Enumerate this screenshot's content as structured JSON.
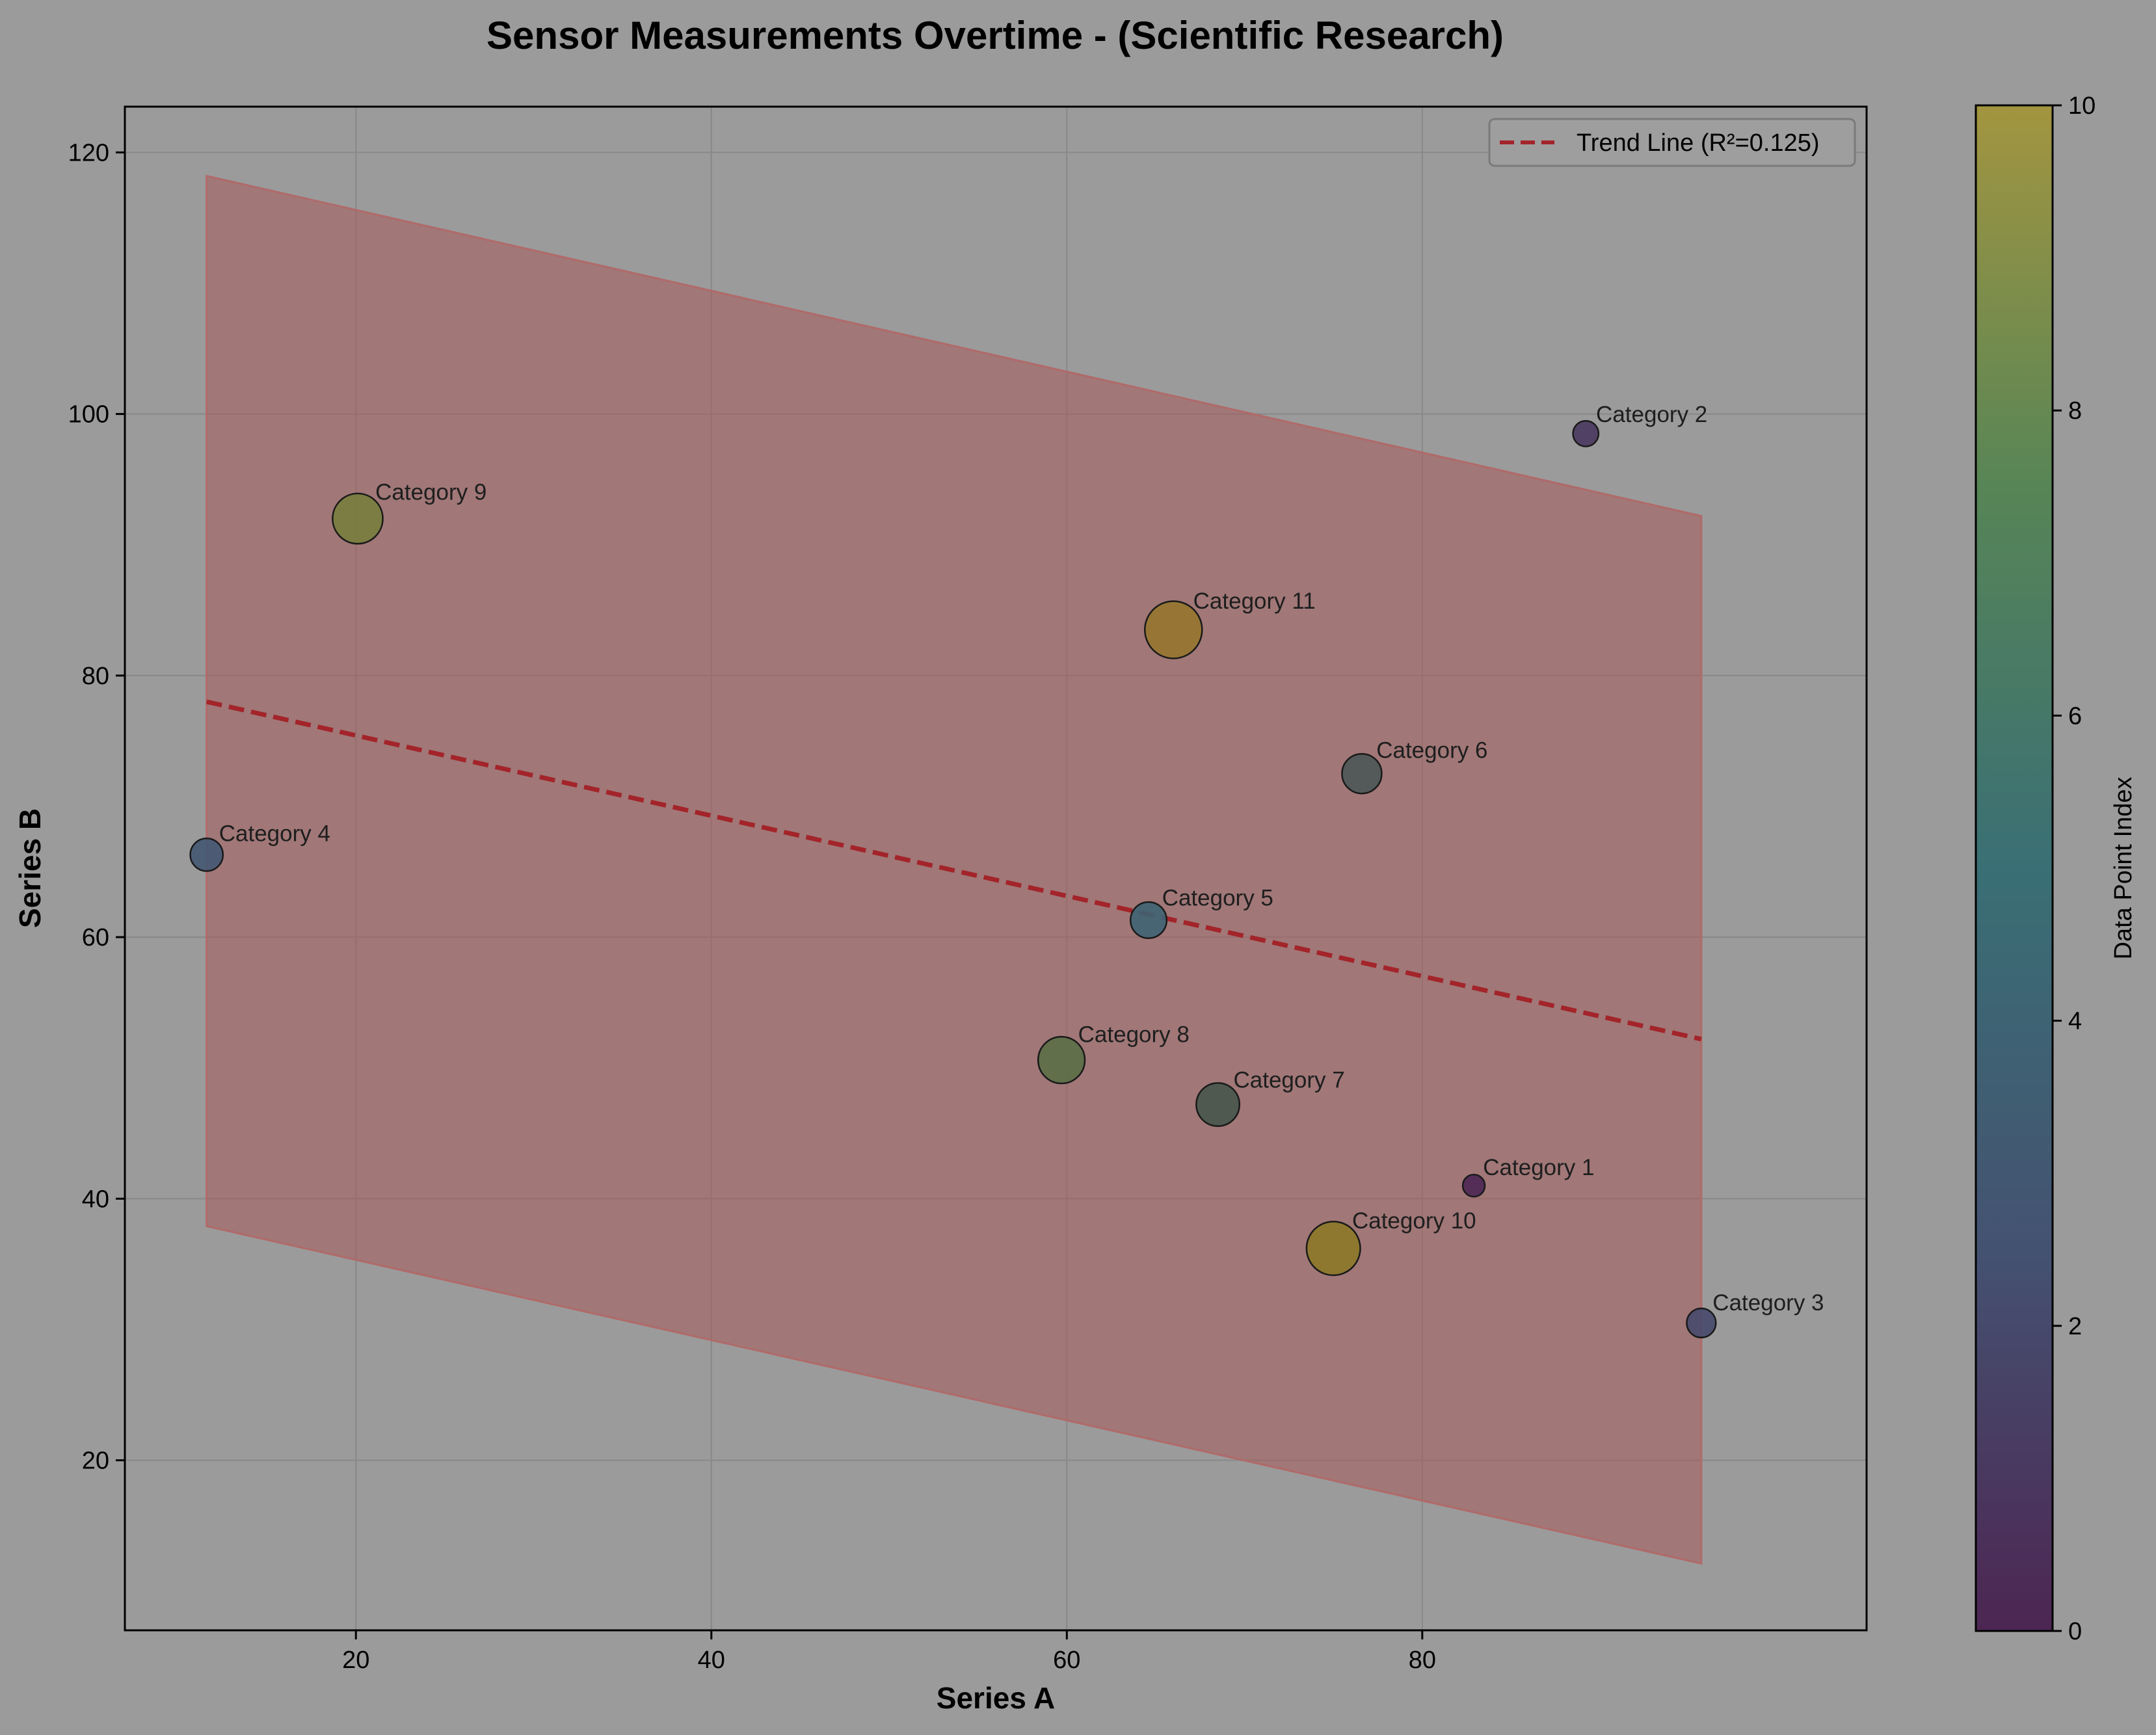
{
  "chart_data": {
    "type": "scatter",
    "title": "Sensor Measurements Overtime - (Scientific Research)",
    "xlabel": "Series A",
    "ylabel": "Series B",
    "xlim": [
      7,
      105
    ],
    "ylim": [
      7,
      123.5
    ],
    "xticks": [
      20,
      40,
      60,
      80
    ],
    "yticks": [
      20,
      40,
      60,
      80,
      100,
      120
    ],
    "grid": true,
    "legend_placement": "top-right",
    "points": [
      {
        "label": "Category 1",
        "x": 82.9,
        "y": 41.0,
        "index": 0
      },
      {
        "label": "Category 2",
        "x": 89.2,
        "y": 98.5,
        "index": 1
      },
      {
        "label": "Category 3",
        "x": 95.7,
        "y": 30.5,
        "index": 2
      },
      {
        "label": "Category 4",
        "x": 11.6,
        "y": 66.3,
        "index": 3
      },
      {
        "label": "Category 5",
        "x": 64.6,
        "y": 61.3,
        "index": 4
      },
      {
        "label": "Category 6",
        "x": 76.6,
        "y": 72.5,
        "index": 5
      },
      {
        "label": "Category 7",
        "x": 68.5,
        "y": 47.2,
        "index": 6
      },
      {
        "label": "Category 8",
        "x": 59.7,
        "y": 50.6,
        "index": 7
      },
      {
        "label": "Category 9",
        "x": 20.1,
        "y": 92.0,
        "index": 8
      },
      {
        "label": "Category 10",
        "x": 75.0,
        "y": 36.2,
        "index": 9
      },
      {
        "label": "Category 11",
        "x": 66.0,
        "y": 83.5,
        "index": 10
      }
    ],
    "trend_line": {
      "label": "Trend Line (R²=0.125)",
      "x": [
        11.6,
        95.7
      ],
      "y": [
        78.0,
        52.2
      ],
      "color": "#a3242a"
    },
    "band": {
      "x": [
        11.6,
        95.7
      ],
      "upper": [
        118.2,
        92.2
      ],
      "lower": [
        37.9,
        12.1
      ],
      "color": "#a65a5a"
    },
    "colorbar": {
      "label": "Data Point Index",
      "range": [
        0,
        10
      ],
      "ticks": [
        0,
        2,
        4,
        6,
        8,
        10
      ],
      "colormap": "viridis"
    }
  }
}
